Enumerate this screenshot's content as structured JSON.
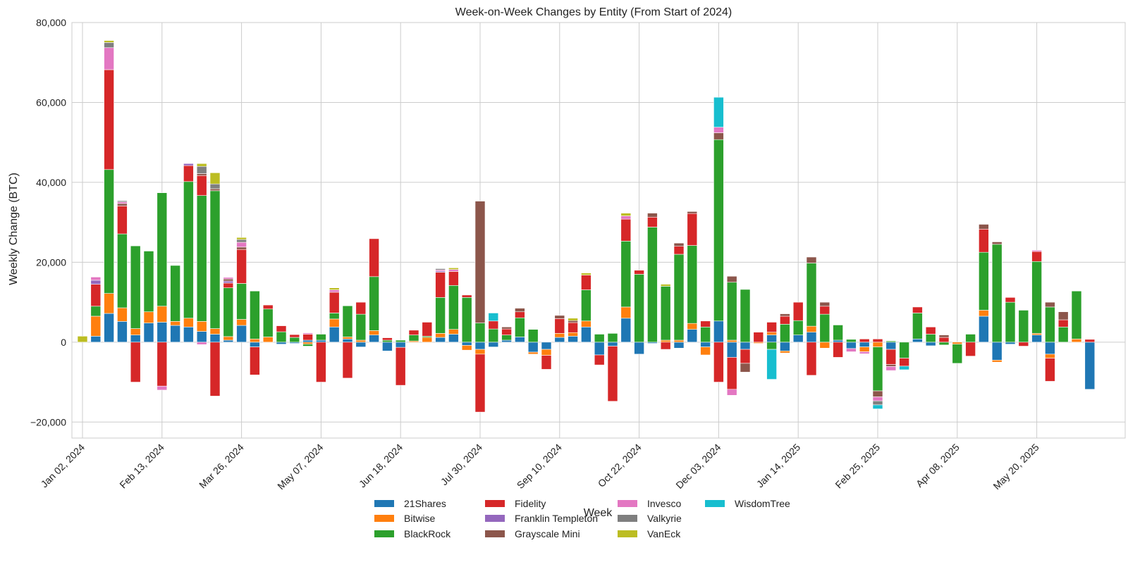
{
  "chart_data": {
    "type": "bar",
    "stacked": true,
    "title": "Week-on-Week Changes by Entity (From Start of 2024)",
    "xlabel": "Week",
    "ylabel": "Weekly Change (BTC)",
    "ylim": [
      -24000,
      80000
    ],
    "grid": true,
    "legend_position": "bottom-center",
    "colors": {
      "21Shares": "#1f77b4",
      "Bitwise": "#ff7f0e",
      "BlackRock": "#2ca02c",
      "Fidelity": "#d62728",
      "Franklin Templeton": "#9467bd",
      "Grayscale Mini": "#8c564b",
      "Invesco": "#e377c2",
      "Valkyrie": "#7f7f7f",
      "VanEck": "#bcbd22",
      "WisdomTree": "#17becf"
    },
    "legend": [
      "21Shares",
      "Bitwise",
      "BlackRock",
      "Fidelity",
      "Franklin Templeton",
      "Grayscale Mini",
      "Invesco",
      "Valkyrie",
      "VanEck",
      "WisdomTree"
    ],
    "x_ticks": [
      {
        "index": 0,
        "label": "Jan 02, 2024"
      },
      {
        "index": 6,
        "label": "Feb 13, 2024"
      },
      {
        "index": 12,
        "label": "Mar 26, 2024"
      },
      {
        "index": 18,
        "label": "May 07, 2024"
      },
      {
        "index": 24,
        "label": "Jun 18, 2024"
      },
      {
        "index": 30,
        "label": "Jul 30, 2024"
      },
      {
        "index": 36,
        "label": "Sep 10, 2024"
      },
      {
        "index": 42,
        "label": "Oct 22, 2024"
      },
      {
        "index": 48,
        "label": "Dec 03, 2024"
      },
      {
        "index": 54,
        "label": "Jan 14, 2025"
      },
      {
        "index": 60,
        "label": "Feb 25, 2025"
      },
      {
        "index": 66,
        "label": "Apr 08, 2025"
      },
      {
        "index": 72,
        "label": "May 20, 2025"
      }
    ],
    "y_ticks": [
      -20000,
      0,
      20000,
      40000,
      60000,
      80000
    ],
    "y_tick_labels": [
      "−20,000",
      "0",
      "20,000",
      "40,000",
      "60,000",
      "80,000"
    ],
    "series_order": [
      "21Shares",
      "Bitwise",
      "BlackRock",
      "Fidelity",
      "Franklin Templeton",
      "Grayscale Mini",
      "Invesco",
      "Valkyrie",
      "VanEck",
      "WisdomTree"
    ],
    "weeks": [
      {
        "VanEck": 1500
      },
      {
        "21Shares": 1500,
        "Bitwise": 5000,
        "BlackRock": 2500,
        "Fidelity": 5500,
        "Franklin Templeton": 1000,
        "Invesco": 800
      },
      {
        "21Shares": 7200,
        "Bitwise": 5000,
        "BlackRock": 31000,
        "Fidelity": 25000,
        "Invesco": 5500,
        "Valkyrie": 1300,
        "VanEck": 500
      },
      {
        "21Shares": 5200,
        "Bitwise": 3400,
        "BlackRock": 18500,
        "Fidelity": 7000,
        "Grayscale Mini": 600,
        "Invesco": 400,
        "Valkyrie": 300
      },
      {
        "21Shares": 1800,
        "Bitwise": 1600,
        "BlackRock": 20700,
        "Fidelity": -10000
      },
      {
        "21Shares": 4800,
        "Bitwise": 2800,
        "BlackRock": 15200
      },
      {
        "21Shares": 5000,
        "Bitwise": 4000,
        "BlackRock": 28400,
        "Fidelity": -11000,
        "Invesco": -1000
      },
      {
        "21Shares": 4200,
        "Bitwise": 1000,
        "BlackRock": 14000
      },
      {
        "21Shares": 3800,
        "Bitwise": 2200,
        "BlackRock": 34200,
        "Fidelity": 4000,
        "Franklin Templeton": 500
      },
      {
        "21Shares": 2700,
        "Bitwise": 2500,
        "BlackRock": 31500,
        "Fidelity": 5000,
        "Grayscale Mini": 500,
        "Valkyrie": 1800,
        "VanEck": 700,
        "Invesco": -600
      },
      {
        "21Shares": 2000,
        "Bitwise": 1400,
        "BlackRock": 34500,
        "Grayscale Mini": 500,
        "Valkyrie": 1200,
        "VanEck": 2800,
        "Fidelity": -13500
      },
      {
        "21Shares": 500,
        "Bitwise": 900,
        "BlackRock": 12200,
        "Fidelity": 1200,
        "Franklin Templeton": 500,
        "Grayscale Mini": 500,
        "Invesco": 400
      },
      {
        "21Shares": 4200,
        "Bitwise": 1500,
        "BlackRock": 9000,
        "Fidelity": 8500,
        "Valkyrie": 700,
        "Invesco": 1200,
        "Grayscale Mini": 600,
        "VanEck": 500
      },
      {
        "BlackRock": 12000,
        "Bitwise": 800,
        "21Shares": -1200,
        "Fidelity": -7000
      },
      {
        "Bitwise": 1300,
        "BlackRock": 7000,
        "Fidelity": 1000
      },
      {
        "BlackRock": 2600,
        "Fidelity": 1500,
        "21Shares": -500
      },
      {
        "BlackRock": 1200,
        "Fidelity": 700,
        "21Shares": -300
      },
      {
        "21Shares": 500,
        "Fidelity": 1500,
        "Invesco": 300,
        "BlackRock": -500,
        "Bitwise": -500
      },
      {
        "BlackRock": 1500,
        "21Shares": 500,
        "Fidelity": -10000
      },
      {
        "21Shares": 3800,
        "Bitwise": 2000,
        "BlackRock": 1500,
        "Fidelity": 5200,
        "Invesco": 600,
        "VanEck": 500
      },
      {
        "21Shares": 800,
        "Bitwise": 500,
        "BlackRock": 7800,
        "Fidelity": -9000
      },
      {
        "BlackRock": 6500,
        "Bitwise": 500,
        "Fidelity": 3000,
        "21Shares": -1200
      },
      {
        "21Shares": 1800,
        "Bitwise": 1100,
        "BlackRock": 13500,
        "Fidelity": 9500
      },
      {
        "BlackRock": 500,
        "Fidelity": 600,
        "21Shares": -2200
      },
      {
        "BlackRock": 500,
        "21Shares": -1300,
        "Fidelity": -9500
      },
      {
        "BlackRock": 1500,
        "Fidelity": 1200,
        "Bitwise": 300
      },
      {
        "Bitwise": 1200,
        "Fidelity": 3500,
        "BlackRock": 300
      },
      {
        "21Shares": 1200,
        "Bitwise": 1000,
        "BlackRock": 9000,
        "Fidelity": 6300,
        "Franklin Templeton": 300,
        "Invesco": 300,
        "Valkyrie": 300
      },
      {
        "21Shares": 2000,
        "Bitwise": 1200,
        "BlackRock": 11000,
        "Fidelity": 3500,
        "Invesco": 500,
        "VanEck": 400
      },
      {
        "BlackRock": 11200,
        "Fidelity": 600,
        "21Shares": -800,
        "Bitwise": -1200
      },
      {
        "BlackRock": 4800,
        "Grayscale Mini": 30500,
        "21Shares": -1800,
        "Bitwise": -1200,
        "Fidelity": -14500
      },
      {
        "BlackRock": 3300,
        "WisdomTree": 2000,
        "Fidelity": 2000,
        "21Shares": -1200
      },
      {
        "21Shares": 500,
        "BlackRock": 1300,
        "Fidelity": 1500,
        "Grayscale Mini": 500
      },
      {
        "21Shares": 1300,
        "BlackRock": 4800,
        "Fidelity": 1500,
        "Grayscale Mini": 900
      },
      {
        "BlackRock": 3200,
        "21Shares": -2500,
        "Bitwise": -500
      },
      {
        "21Shares": -1800,
        "Bitwise": -1500,
        "Fidelity": -3500
      },
      {
        "21Shares": 1200,
        "Bitwise": 1000,
        "Fidelity": 3700,
        "Grayscale Mini": 800
      },
      {
        "21Shares": 1500,
        "Bitwise": 900,
        "Fidelity": 2500,
        "Grayscale Mini": 500,
        "VanEck": 600
      },
      {
        "21Shares": 3800,
        "Bitwise": 1500,
        "BlackRock": 7800,
        "Fidelity": 3700,
        "VanEck": 500
      },
      {
        "BlackRock": 2000,
        "21Shares": -3200,
        "Fidelity": -2500
      },
      {
        "BlackRock": 2200,
        "21Shares": -1000,
        "Fidelity": -13800
      },
      {
        "21Shares": 6000,
        "Bitwise": 2800,
        "BlackRock": 16500,
        "Fidelity": 5500,
        "Invesco": 800,
        "VanEck": 700
      },
      {
        "BlackRock": 17000,
        "Fidelity": 1000,
        "21Shares": -3000
      },
      {
        "BlackRock": 28800,
        "Fidelity": 2500,
        "Grayscale Mini": 1000,
        "21Shares": -300
      },
      {
        "Bitwise": 500,
        "BlackRock": 13500,
        "VanEck": 500,
        "Fidelity": -1800
      },
      {
        "Bitwise": 500,
        "BlackRock": 21500,
        "Fidelity": 2000,
        "Grayscale Mini": 800,
        "21Shares": -1500
      },
      {
        "21Shares": 3200,
        "Bitwise": 1500,
        "BlackRock": 19500,
        "Fidelity": 8000,
        "Grayscale Mini": 500
      },
      {
        "BlackRock": 3800,
        "Fidelity": 1500,
        "21Shares": -1200,
        "Bitwise": -2000
      },
      {
        "21Shares": 5300,
        "BlackRock": 45400,
        "Grayscale Mini": 1700,
        "Invesco": 1400,
        "WisdomTree": 7500,
        "Fidelity": -10000
      },
      {
        "Bitwise": 500,
        "BlackRock": 14500,
        "Grayscale Mini": 1500,
        "21Shares": -3800,
        "Fidelity": -8000,
        "Invesco": -1500
      },
      {
        "BlackRock": 13200,
        "21Shares": -1800,
        "Fidelity": -3500,
        "Grayscale Mini": -2200
      },
      {
        "Fidelity": 2500,
        "Bitwise": -300
      },
      {
        "21Shares": 1800,
        "Bitwise": 700,
        "Fidelity": 2500,
        "BlackRock": -1800,
        "WisdomTree": -7500
      },
      {
        "BlackRock": 4500,
        "Fidelity": 2000,
        "Grayscale Mini": 600,
        "21Shares": -2200,
        "Bitwise": -500
      },
      {
        "21Shares": 1800,
        "BlackRock": 3600,
        "Fidelity": 4600
      },
      {
        "21Shares": 2500,
        "Bitwise": 1500,
        "BlackRock": 15800,
        "Grayscale Mini": 1500,
        "Fidelity": -8300
      },
      {
        "BlackRock": 7000,
        "Fidelity": 2000,
        "Grayscale Mini": 1000,
        "Bitwise": -1500
      },
      {
        "BlackRock": 3800,
        "21Shares": 500,
        "Fidelity": -3800
      },
      {
        "BlackRock": 700,
        "21Shares": -1600,
        "Invesco": -800
      },
      {
        "Fidelity": 800,
        "21Shares": -1200,
        "Bitwise": -1200,
        "Invesco": -500
      },
      {
        "Fidelity": 800,
        "Bitwise": -1200,
        "BlackRock": -11000,
        "Grayscale Mini": -1500,
        "Invesco": -1000,
        "Valkyrie": -1000,
        "WisdomTree": -1000
      },
      {
        "BlackRock": 300,
        "21Shares": -1800,
        "Fidelity": -3800,
        "Invesco": -1000,
        "Grayscale Mini": -500
      },
      {
        "BlackRock": -4000,
        "Fidelity": -2000,
        "WisdomTree": -900
      },
      {
        "21Shares": 800,
        "BlackRock": 6500,
        "Fidelity": 1500
      },
      {
        "BlackRock": 2000,
        "Fidelity": 1800,
        "21Shares": -900
      },
      {
        "Fidelity": 1200,
        "BlackRock": -700,
        "Grayscale Mini": 600
      },
      {
        "BlackRock": -4800,
        "Bitwise": -500
      },
      {
        "BlackRock": 2000,
        "Fidelity": -3500
      },
      {
        "21Shares": 6500,
        "Bitwise": 1500,
        "BlackRock": 14500,
        "Fidelity": 5800,
        "Grayscale Mini": 1200
      },
      {
        "BlackRock": 24500,
        "21Shares": -4500,
        "Bitwise": -500,
        "Grayscale Mini": 600
      },
      {
        "BlackRock": 10000,
        "Fidelity": 1200,
        "21Shares": -500
      },
      {
        "BlackRock": 8000,
        "Fidelity": -1000
      },
      {
        "21Shares": 1800,
        "Bitwise": 400,
        "BlackRock": 18000,
        "Fidelity": 2500,
        "Invesco": 300
      },
      {
        "BlackRock": 8800,
        "Grayscale Mini": 1200,
        "21Shares": -3000,
        "Bitwise": -1000,
        "Fidelity": -5800
      },
      {
        "BlackRock": 3800,
        "Fidelity": 1800,
        "Grayscale Mini": 2000
      },
      {
        "Bitwise": 800,
        "BlackRock": 12000
      },
      {
        "Fidelity": 700,
        "21Shares": -11800
      }
    ]
  }
}
